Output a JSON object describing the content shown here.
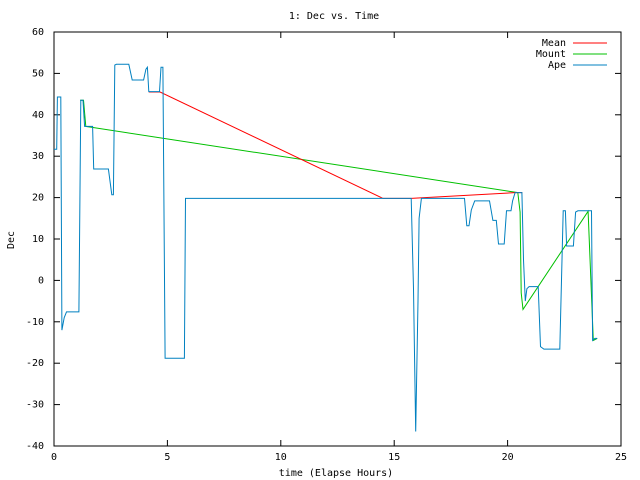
{
  "chart_data": {
    "type": "line",
    "title": "1: Dec vs. Time",
    "xlabel": "time (Elapse Hours)",
    "ylabel": "Dec",
    "xlim": [
      0,
      25
    ],
    "ylim": [
      -40,
      60
    ],
    "xticks": [
      0,
      5,
      10,
      15,
      20,
      25
    ],
    "yticks": [
      -40,
      -30,
      -20,
      -10,
      0,
      10,
      20,
      30,
      40,
      50,
      60
    ],
    "grid": false,
    "legend_position": "top-right",
    "series": [
      {
        "name": "Mean",
        "color": "#ff0000",
        "points": [
          [
            4.18,
            45.5
          ],
          [
            4.68,
            45.5
          ],
          [
            14.5,
            19.8
          ],
          [
            15.75,
            19.8
          ],
          [
            20.33,
            21.2
          ],
          [
            20.65,
            21.2
          ]
        ]
      },
      {
        "name": "Mount",
        "color": "#00c000",
        "points": [
          [
            1.15,
            43.5
          ],
          [
            1.3,
            43.5
          ],
          [
            1.4,
            37.2
          ],
          [
            20.45,
            21.2
          ],
          [
            20.55,
            16.5
          ],
          [
            20.6,
            -3.0
          ],
          [
            20.68,
            -7.0
          ],
          [
            23.55,
            16.7
          ],
          [
            23.78,
            -14.5
          ],
          [
            23.95,
            -14.0
          ]
        ]
      },
      {
        "name": "Ape",
        "color": "#0080c0",
        "points": [
          [
            0.0,
            31.7
          ],
          [
            0.12,
            31.7
          ],
          [
            0.15,
            44.3
          ],
          [
            0.3,
            44.3
          ],
          [
            0.35,
            -12.0
          ],
          [
            0.45,
            -9.0
          ],
          [
            0.55,
            -7.6
          ],
          [
            1.1,
            -7.6
          ],
          [
            1.18,
            43.5
          ],
          [
            1.28,
            43.5
          ],
          [
            1.35,
            37.2
          ],
          [
            1.7,
            37.2
          ],
          [
            1.75,
            26.9
          ],
          [
            2.4,
            26.9
          ],
          [
            2.55,
            20.7
          ],
          [
            2.62,
            20.7
          ],
          [
            2.68,
            52.0
          ],
          [
            2.75,
            52.2
          ],
          [
            3.3,
            52.2
          ],
          [
            3.45,
            48.4
          ],
          [
            3.95,
            48.4
          ],
          [
            4.05,
            51.0
          ],
          [
            4.12,
            51.5
          ],
          [
            4.18,
            45.6
          ],
          [
            4.65,
            45.6
          ],
          [
            4.72,
            51.5
          ],
          [
            4.8,
            51.5
          ],
          [
            4.9,
            -18.8
          ],
          [
            5.6,
            -18.8
          ],
          [
            5.75,
            -18.8
          ],
          [
            5.8,
            19.8
          ],
          [
            14.5,
            19.8
          ],
          [
            15.75,
            19.8
          ],
          [
            15.85,
            -2.0
          ],
          [
            15.95,
            -36.5
          ],
          [
            16.05,
            -5.0
          ],
          [
            16.1,
            15.0
          ],
          [
            16.2,
            19.8
          ],
          [
            18.1,
            19.8
          ],
          [
            18.2,
            13.2
          ],
          [
            18.3,
            13.2
          ],
          [
            18.4,
            17.0
          ],
          [
            18.55,
            19.2
          ],
          [
            19.2,
            19.2
          ],
          [
            19.35,
            14.5
          ],
          [
            19.5,
            14.5
          ],
          [
            19.6,
            8.8
          ],
          [
            19.85,
            8.8
          ],
          [
            19.95,
            16.8
          ],
          [
            20.15,
            16.8
          ],
          [
            20.22,
            19.2
          ],
          [
            20.33,
            21.2
          ],
          [
            20.63,
            21.2
          ],
          [
            20.7,
            5.0
          ],
          [
            20.78,
            -5.0
          ],
          [
            20.85,
            -2.0
          ],
          [
            20.95,
            -1.5
          ],
          [
            21.35,
            -1.5
          ],
          [
            21.45,
            -16.0
          ],
          [
            21.6,
            -16.6
          ],
          [
            22.3,
            -16.6
          ],
          [
            22.45,
            16.8
          ],
          [
            22.55,
            16.8
          ],
          [
            22.6,
            8.3
          ],
          [
            22.9,
            8.3
          ],
          [
            23.0,
            16.5
          ],
          [
            23.1,
            16.8
          ],
          [
            23.6,
            16.8
          ],
          [
            23.7,
            16.8
          ],
          [
            23.75,
            -14.5
          ],
          [
            23.85,
            -14.0
          ],
          [
            23.95,
            -14.0
          ]
        ]
      }
    ]
  }
}
